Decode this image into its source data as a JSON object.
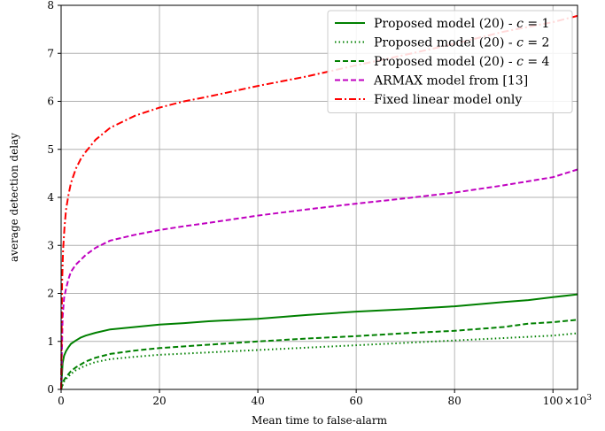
{
  "chart_data": {
    "type": "line",
    "title": "",
    "xlabel": "Mean time to false-alarm",
    "ylabel": "average detection delay",
    "x_multiplier_label": "×10",
    "x_multiplier_exponent": "3",
    "xlim": [
      0,
      105
    ],
    "ylim": [
      0,
      8
    ],
    "xticks": [
      0,
      20,
      40,
      60,
      80,
      100
    ],
    "xtick_labels": [
      "0",
      "20",
      "40",
      "60",
      "80",
      "100"
    ],
    "yticks": [
      0,
      1,
      2,
      3,
      4,
      5,
      6,
      7,
      8
    ],
    "ytick_labels": [
      "0",
      "1",
      "2",
      "3",
      "4",
      "5",
      "6",
      "7",
      "8"
    ],
    "grid": true,
    "legend_position": "top-right",
    "series": [
      {
        "name": "Proposed model (20) - c = 1",
        "legend_prefix": "Proposed model (20) - ",
        "legend_var": "c",
        "legend_suffix": " = 1",
        "color": "#008000",
        "style": "solid",
        "x": [
          0,
          0.3,
          0.6,
          1,
          1.5,
          2,
          3,
          4,
          5,
          7,
          10,
          15,
          20,
          25,
          30,
          40,
          50,
          60,
          70,
          80,
          90,
          95,
          100,
          105
        ],
        "y": [
          0,
          0.55,
          0.7,
          0.8,
          0.88,
          0.95,
          1.02,
          1.08,
          1.12,
          1.18,
          1.25,
          1.3,
          1.35,
          1.38,
          1.42,
          1.47,
          1.55,
          1.62,
          1.67,
          1.73,
          1.82,
          1.86,
          1.92,
          1.98
        ]
      },
      {
        "name": "Proposed model (20) - c = 2",
        "legend_prefix": "Proposed model (20) - ",
        "legend_var": "c",
        "legend_suffix": " = 2",
        "color": "#008000",
        "style": "dotted",
        "x": [
          0,
          0.5,
          1,
          2,
          3,
          5,
          7,
          10,
          15,
          20,
          30,
          40,
          50,
          60,
          70,
          80,
          90,
          100,
          105
        ],
        "y": [
          0,
          0.15,
          0.22,
          0.32,
          0.4,
          0.5,
          0.57,
          0.63,
          0.68,
          0.72,
          0.77,
          0.82,
          0.87,
          0.92,
          0.97,
          1.02,
          1.07,
          1.12,
          1.17
        ]
      },
      {
        "name": "Proposed model (20) - c = 4",
        "legend_prefix": "Proposed model (20) - ",
        "legend_var": "c",
        "legend_suffix": " = 4",
        "color": "#008000",
        "style": "dashed",
        "x": [
          0,
          0.5,
          1,
          2,
          3,
          5,
          7,
          10,
          15,
          20,
          30,
          40,
          50,
          60,
          70,
          80,
          90,
          95,
          100,
          105
        ],
        "y": [
          0,
          0.18,
          0.26,
          0.38,
          0.46,
          0.58,
          0.66,
          0.74,
          0.81,
          0.86,
          0.93,
          1.0,
          1.06,
          1.11,
          1.17,
          1.22,
          1.3,
          1.37,
          1.4,
          1.45
        ]
      },
      {
        "name": "ARMAX model from [13]",
        "color": "#c000c0",
        "style": "dashed",
        "x": [
          0,
          0.3,
          0.6,
          1,
          1.5,
          2,
          3,
          4,
          5,
          7,
          10,
          15,
          20,
          25,
          30,
          40,
          50,
          60,
          70,
          80,
          90,
          100,
          105
        ],
        "y": [
          0,
          1.5,
          1.9,
          2.1,
          2.3,
          2.45,
          2.6,
          2.7,
          2.8,
          2.95,
          3.1,
          3.22,
          3.32,
          3.4,
          3.47,
          3.62,
          3.75,
          3.87,
          3.98,
          4.1,
          4.25,
          4.42,
          4.58
        ]
      },
      {
        "name": "Fixed linear model only",
        "color": "#ff0000",
        "style": "dashdot",
        "x": [
          0,
          0.2,
          0.4,
          0.7,
          1,
          1.5,
          2,
          3,
          4,
          5,
          7,
          10,
          15,
          20,
          25,
          30,
          40,
          50,
          60,
          70,
          80,
          90,
          100,
          105
        ],
        "y": [
          0,
          2.2,
          2.9,
          3.4,
          3.75,
          4.05,
          4.3,
          4.6,
          4.8,
          4.95,
          5.2,
          5.45,
          5.7,
          5.87,
          6.0,
          6.1,
          6.32,
          6.52,
          6.75,
          6.97,
          7.2,
          7.45,
          7.65,
          7.78
        ]
      }
    ]
  }
}
